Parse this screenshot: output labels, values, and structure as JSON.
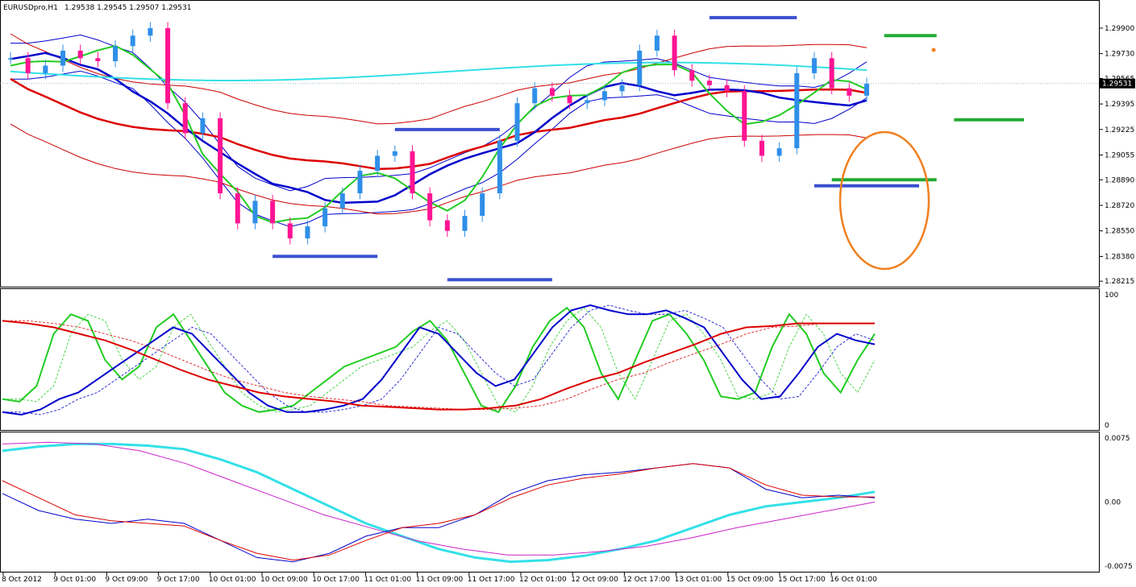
{
  "header": {
    "symbol": "EURUSDpro,H1",
    "ohlc": "1.29538 1.29545 1.29507 1.29531"
  },
  "colors": {
    "bull": "#2f8fe8",
    "bear": "#ff1493",
    "band_blue": "#0000cc",
    "band_red": "#cc0000",
    "ma_green": "#22cc22",
    "ma_red": "#dd0000",
    "ma_cyan": "#33e0e8",
    "level_blue": "#3b4fd0",
    "level_green": "#22aa33",
    "ellipse": "#f08020",
    "osc_magenta": "#cc22cc"
  },
  "chart_data": [
    {
      "type": "candlestick",
      "panel": "price",
      "ylim": [
        1.282,
        1.2998
      ],
      "yticks": [
        "1.29900",
        "1.29730",
        "1.29565",
        "1.29395",
        "1.29225",
        "1.29055",
        "1.28890",
        "1.28720",
        "1.28550",
        "1.28380",
        "1.28215"
      ],
      "current_price_label": "1.29531",
      "current_price": 1.29531,
      "xticks": [
        "8 Oct 2012",
        "9 Oct 01:00",
        "9 Oct 09:00",
        "9 Oct 17:00",
        "10 Oct 01:00",
        "10 Oct 09:00",
        "10 Oct 17:00",
        "11 Oct 01:00",
        "11 Oct 09:00",
        "11 Oct 17:00",
        "12 Oct 01:00",
        "12 Oct 09:00",
        "12 Oct 17:00",
        "13 Oct 01:00",
        "15 Oct 09:00",
        "15 Oct 17:00",
        "16 Oct 01:00"
      ],
      "close_path": [
        1.297,
        1.296,
        1.2965,
        1.2975,
        1.297,
        1.2968,
        1.2978,
        1.2985,
        1.299,
        1.294,
        1.292,
        1.293,
        1.288,
        1.286,
        1.2875,
        1.286,
        1.285,
        1.2858,
        1.287,
        1.288,
        1.2895,
        1.2905,
        1.2908,
        1.288,
        1.2862,
        1.2855,
        1.2865,
        1.288,
        1.2915,
        1.294,
        1.295,
        1.2945,
        1.294,
        1.2942,
        1.2948,
        1.2952,
        1.2975,
        1.2985,
        1.2962,
        1.2955,
        1.2952,
        1.2948,
        1.2915,
        1.2905,
        1.291,
        1.296,
        1.297,
        1.295,
        1.2945,
        1.2953
      ],
      "levels_blue": [
        {
          "x": [
            15,
            21
          ],
          "y": 1.2838
        },
        {
          "x": [
            22,
            28
          ],
          "y": 1.29225
        },
        {
          "x": [
            25,
            31
          ],
          "y": 1.28225
        },
        {
          "x": [
            40,
            45
          ],
          "y": 1.2997
        },
        {
          "x": [
            46,
            52
          ],
          "y": 1.2885
        }
      ],
      "levels_green": [
        {
          "x": [
            50,
            53
          ],
          "y": 1.2985
        },
        {
          "x": [
            47,
            53
          ],
          "y": 1.2889
        },
        {
          "x": [
            54,
            58
          ],
          "y": 1.2929
        }
      ],
      "series": []
    },
    {
      "type": "line",
      "panel": "oscillator",
      "ylim": [
        0,
        100
      ],
      "yticks": [
        "100",
        "0"
      ],
      "series": [
        {
          "color": "green",
          "values": [
            20,
            18,
            30,
            70,
            85,
            80,
            50,
            35,
            45,
            75,
            85,
            65,
            45,
            25,
            15,
            10,
            12,
            15,
            25,
            35,
            45,
            50,
            55,
            60,
            72,
            80,
            65,
            40,
            15,
            10,
            30,
            60,
            80,
            90,
            75,
            40,
            20,
            50,
            80,
            85,
            70,
            50,
            22,
            20,
            25,
            60,
            85,
            70,
            40,
            25,
            50,
            70
          ]
        },
        {
          "color": "blue",
          "values": [
            10,
            8,
            12,
            20,
            25,
            35,
            45,
            55,
            65,
            75,
            70,
            55,
            40,
            25,
            15,
            10,
            10,
            12,
            15,
            20,
            35,
            55,
            75,
            70,
            55,
            40,
            30,
            35,
            55,
            75,
            88,
            92,
            88,
            85,
            85,
            88,
            82,
            75,
            55,
            35,
            20,
            22,
            40,
            60,
            70,
            65,
            62
          ]
        },
        {
          "color": "red",
          "values": [
            80,
            78,
            75,
            70,
            65,
            58,
            50,
            42,
            35,
            30,
            25,
            22,
            20,
            18,
            15,
            14,
            13,
            12,
            12,
            13,
            15,
            20,
            28,
            35,
            40,
            48,
            55,
            62,
            70,
            75,
            76,
            78,
            78,
            78,
            78
          ]
        }
      ]
    },
    {
      "type": "line",
      "panel": "macd",
      "ylim": [
        -0.0075,
        0.0075
      ],
      "yticks": [
        "0.0075",
        "0.00",
        "-0.0075"
      ],
      "series": [
        {
          "color": "cyan",
          "values": [
            0.006,
            0.0065,
            0.0068,
            0.0068,
            0.0066,
            0.0062,
            0.005,
            0.0035,
            0.0015,
            -0.0005,
            -0.0025,
            -0.004,
            -0.0055,
            -0.0065,
            -0.007,
            -0.0068,
            -0.0063,
            -0.0055,
            -0.0045,
            -0.003,
            -0.0015,
            -0.0005,
            0.0,
            0.0005,
            0.0012
          ]
        },
        {
          "color": "magenta",
          "values": [
            0.0068,
            0.007,
            0.0068,
            0.006,
            0.0045,
            0.0025,
            0.0005,
            -0.0015,
            -0.003,
            -0.0045,
            -0.0055,
            -0.0062,
            -0.0062,
            -0.0058,
            -0.0052,
            -0.0042,
            -0.003,
            -0.002,
            -0.001,
            0.0
          ]
        },
        {
          "color": "blue",
          "values": [
            0.001,
            -0.001,
            -0.002,
            -0.0025,
            -0.002,
            -0.0025,
            -0.0045,
            -0.0065,
            -0.007,
            -0.006,
            -0.004,
            -0.003,
            -0.003,
            -0.0015,
            0.001,
            0.0025,
            0.0032,
            0.0035,
            0.004,
            0.0045,
            0.004,
            0.0015,
            0.0005,
            0.0008,
            0.0005
          ]
        },
        {
          "color": "red",
          "values": [
            0.0025,
            0.0005,
            -0.0015,
            -0.0022,
            -0.0025,
            -0.0028,
            -0.0045,
            -0.006,
            -0.0068,
            -0.0062,
            -0.0045,
            -0.003,
            -0.0025,
            -0.0015,
            0.0005,
            0.002,
            0.0028,
            0.0033,
            0.004,
            0.0045,
            0.004,
            0.002,
            0.0008,
            0.0006,
            0.0006
          ]
        }
      ]
    }
  ]
}
